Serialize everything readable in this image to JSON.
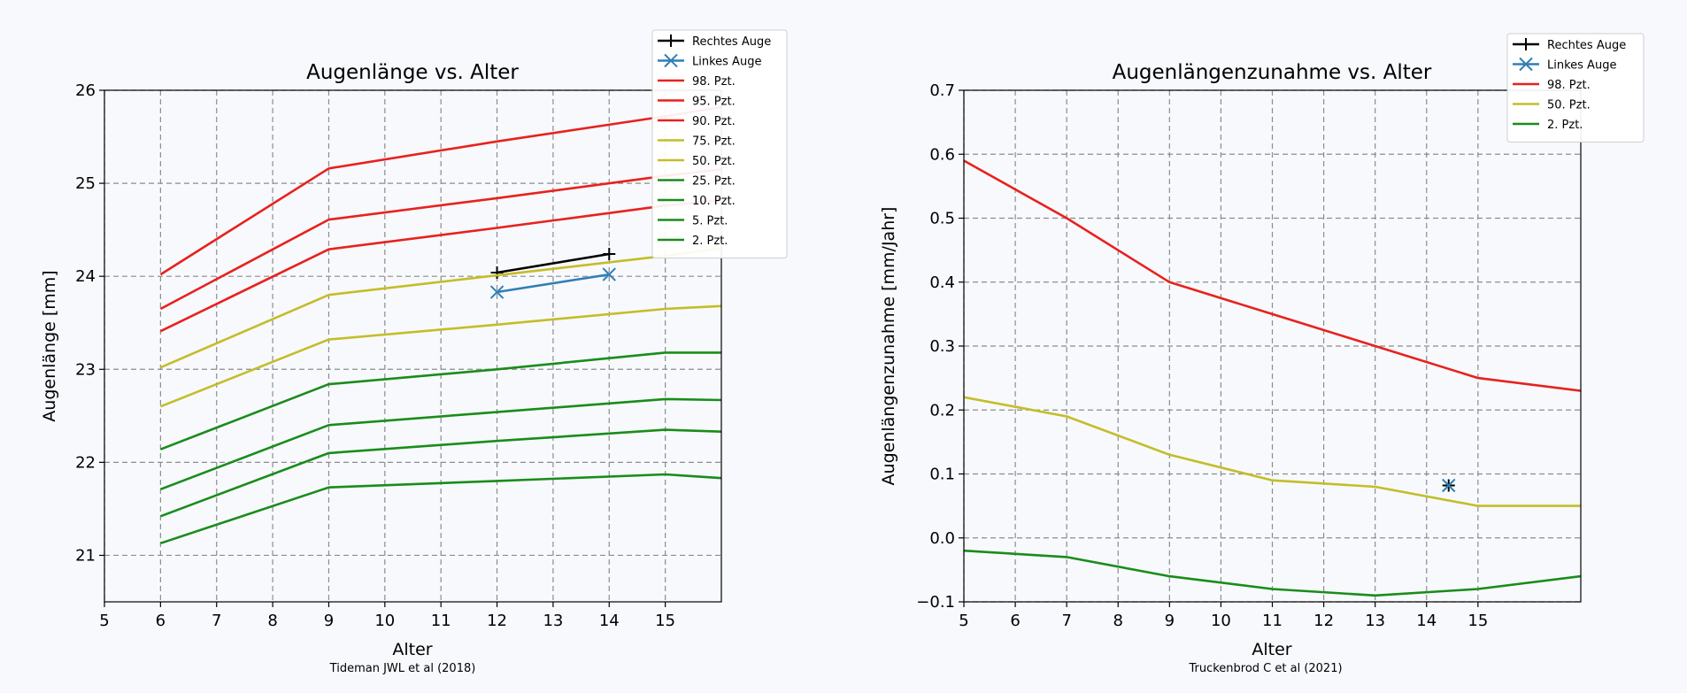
{
  "chart_data": [
    {
      "type": "line",
      "title": "Augenlänge vs. Alter",
      "xlabel": "Alter",
      "ylabel": "Augenlänge [mm]",
      "source": "Tideman JWL et al (2018)",
      "xlim": [
        5,
        16
      ],
      "ylim": [
        20.5,
        26
      ],
      "xticks": [
        5,
        6,
        7,
        8,
        9,
        10,
        11,
        12,
        13,
        14,
        15
      ],
      "yticks": [
        21,
        22,
        23,
        24,
        25,
        26
      ],
      "grid": true,
      "legend_position": "top-right",
      "series": [
        {
          "name": "Rechtes Auge",
          "color": "#000000",
          "marker": "plus",
          "x": [
            12,
            14
          ],
          "y": [
            24.04,
            24.24
          ]
        },
        {
          "name": "Linkes Auge",
          "color": "#2f7fb5",
          "marker": "x",
          "x": [
            12,
            14
          ],
          "y": [
            23.83,
            24.02
          ]
        },
        {
          "name": "98. Pzt.",
          "color": "#e8211d",
          "x": [
            6,
            9,
            12,
            15,
            16
          ],
          "y": [
            24.02,
            25.16,
            25.45,
            25.72,
            25.82
          ]
        },
        {
          "name": "95. Pzt.",
          "color": "#e8211d",
          "x": [
            6,
            9,
            12,
            15,
            16
          ],
          "y": [
            23.65,
            24.61,
            24.84,
            25.08,
            25.15
          ]
        },
        {
          "name": "90. Pzt.",
          "color": "#e8211d",
          "x": [
            6,
            9,
            12,
            15,
            16
          ],
          "y": [
            23.41,
            24.29,
            24.52,
            24.76,
            24.82
          ]
        },
        {
          "name": "75. Pzt.",
          "color": "#c4bd28",
          "x": [
            6,
            9,
            12,
            15,
            16
          ],
          "y": [
            23.02,
            23.8,
            24.01,
            24.22,
            24.3
          ]
        },
        {
          "name": "50. Pzt.",
          "color": "#c4bd28",
          "x": [
            6,
            9,
            12,
            15,
            16
          ],
          "y": [
            22.6,
            23.32,
            23.48,
            23.65,
            23.68
          ]
        },
        {
          "name": "25. Pzt.",
          "color": "#1a8c1a",
          "x": [
            6,
            9,
            12,
            15,
            16
          ],
          "y": [
            22.14,
            22.84,
            23.0,
            23.18,
            23.18
          ]
        },
        {
          "name": "10. Pzt.",
          "color": "#1a8c1a",
          "x": [
            6,
            9,
            12,
            15,
            16
          ],
          "y": [
            21.71,
            22.4,
            22.54,
            22.68,
            22.67
          ]
        },
        {
          "name": "5. Pzt.",
          "color": "#1a8c1a",
          "x": [
            6,
            9,
            12,
            15,
            16
          ],
          "y": [
            21.42,
            22.1,
            22.23,
            22.35,
            22.33
          ]
        },
        {
          "name": "2. Pzt.",
          "color": "#1a8c1a",
          "x": [
            6,
            9,
            12,
            15,
            16
          ],
          "y": [
            21.13,
            21.73,
            21.8,
            21.87,
            21.83
          ]
        }
      ]
    },
    {
      "type": "line",
      "title": "Augenlängenzunahme vs. Alter",
      "xlabel": "Alter",
      "ylabel": "Augenlängenzunahme [mm/Jahr]",
      "source": "Truckenbrod C et al (2021)",
      "xlim": [
        5,
        17
      ],
      "ylim": [
        -0.1,
        0.7
      ],
      "xticks": [
        5,
        6,
        7,
        8,
        9,
        10,
        11,
        12,
        13,
        14,
        15
      ],
      "yticks": [
        -0.1,
        0.0,
        0.1,
        0.2,
        0.3,
        0.4,
        0.5,
        0.6,
        0.7
      ],
      "grid": true,
      "legend_position": "top-right",
      "series": [
        {
          "name": "Rechtes Auge",
          "color": "#000000",
          "marker": "plus",
          "x": [
            14.43
          ],
          "y": [
            0.082
          ]
        },
        {
          "name": "Linkes Auge",
          "color": "#2f7fb5",
          "marker": "x",
          "x": [
            14.43
          ],
          "y": [
            0.082
          ]
        },
        {
          "name": "98. Pzt.",
          "color": "#e8211d",
          "x": [
            5,
            7,
            9,
            11,
            13,
            15,
            17
          ],
          "y": [
            0.59,
            0.5,
            0.4,
            0.35,
            0.3,
            0.25,
            0.23
          ]
        },
        {
          "name": "50. Pzt.",
          "color": "#c4bd28",
          "x": [
            5,
            7,
            9,
            11,
            13,
            15,
            17
          ],
          "y": [
            0.22,
            0.19,
            0.13,
            0.09,
            0.08,
            0.05,
            0.05
          ]
        },
        {
          "name": "2. Pzt.",
          "color": "#1a8c1a",
          "x": [
            5,
            7,
            9,
            11,
            13,
            15,
            17
          ],
          "y": [
            -0.02,
            -0.03,
            -0.06,
            -0.08,
            -0.09,
            -0.08,
            -0.06
          ]
        }
      ]
    }
  ]
}
